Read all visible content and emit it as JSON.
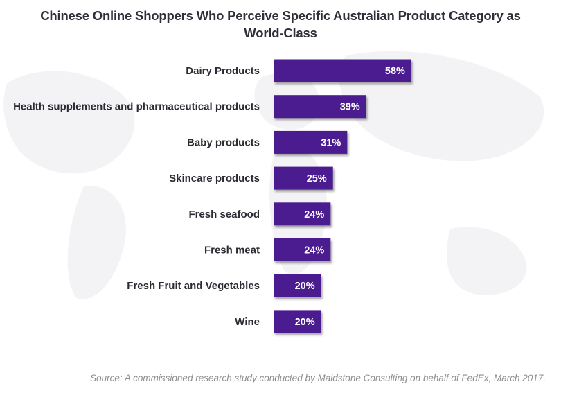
{
  "chart_data": {
    "type": "bar",
    "orientation": "horizontal",
    "title": "Chinese Online Shoppers Who Perceive Specific Australian Product Category as World-Class",
    "categories": [
      "Dairy Products",
      "Health supplements and pharmaceutical products",
      "Baby products",
      "Skincare products",
      "Fresh seafood",
      "Fresh meat",
      "Fresh Fruit and Vegetables",
      "Wine"
    ],
    "values": [
      58,
      39,
      31,
      25,
      24,
      24,
      20,
      20
    ],
    "value_labels": [
      "58%",
      "39%",
      "31%",
      "25%",
      "24%",
      "24%",
      "20%",
      "20%"
    ],
    "bar_color": "#4b1c8f",
    "grid": false,
    "legend": "none"
  },
  "source": "Source: A commissioned research study conducted by Maidstone Consulting on behalf of FedEx, March 2017."
}
